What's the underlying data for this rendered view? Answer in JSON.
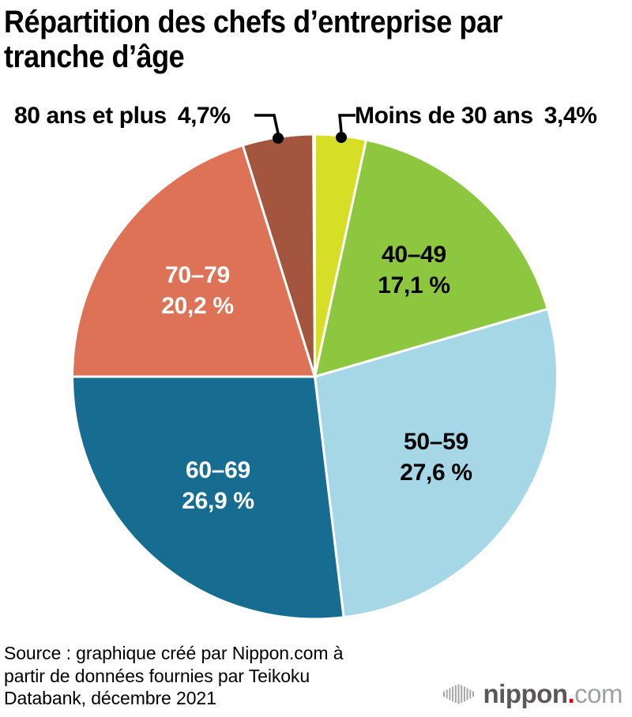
{
  "title": {
    "full": "Répartition des chefs d’entreprise par tranche d’âge",
    "line1": "Répartition des chefs d’entreprise par",
    "line2": "tranche d’âge"
  },
  "chart_data": {
    "type": "pie",
    "title": "Répartition des chefs d’entreprise par tranche d’âge",
    "unit": "%",
    "start_angle_deg": 0,
    "direction": "clockwise",
    "total_shown": 99.9,
    "legend_position": "labels-on-chart",
    "segments": [
      {
        "label": "Moins de 30 ans",
        "value": 3.4,
        "display": "3,4%",
        "color": "#d7de26",
        "text_color": "#000000",
        "label_placement": "callout-top-right"
      },
      {
        "label": "40–49",
        "value": 17.1,
        "display": "17,1 %",
        "color": "#8dc63f",
        "text_color": "#000000",
        "label_placement": "inside"
      },
      {
        "label": "50–59",
        "value": 27.6,
        "display": "27,6 %",
        "color": "#a5d7e6",
        "text_color": "#000000",
        "label_placement": "inside"
      },
      {
        "label": "60–69",
        "value": 26.9,
        "display": "26,9 %",
        "color": "#176c92",
        "text_color": "#ffffff",
        "label_placement": "inside"
      },
      {
        "label": "70–79",
        "value": 20.2,
        "display": "20,2 %",
        "color": "#dd7257",
        "text_color": "#ffffff",
        "label_placement": "inside"
      },
      {
        "label": "80 ans et plus",
        "value": 4.7,
        "display": "4,7%",
        "color": "#a4553e",
        "text_color": "#000000",
        "label_placement": "callout-top-left"
      }
    ]
  },
  "source": {
    "lines": [
      "Source : graphique créé par Nippon.com à",
      "partir de données fournies par Teikoku",
      "Databank, décembre 2021"
    ]
  },
  "logo": {
    "name": "nippon",
    "dot": ".",
    "tld": "com",
    "brand_color": "#e60012"
  }
}
